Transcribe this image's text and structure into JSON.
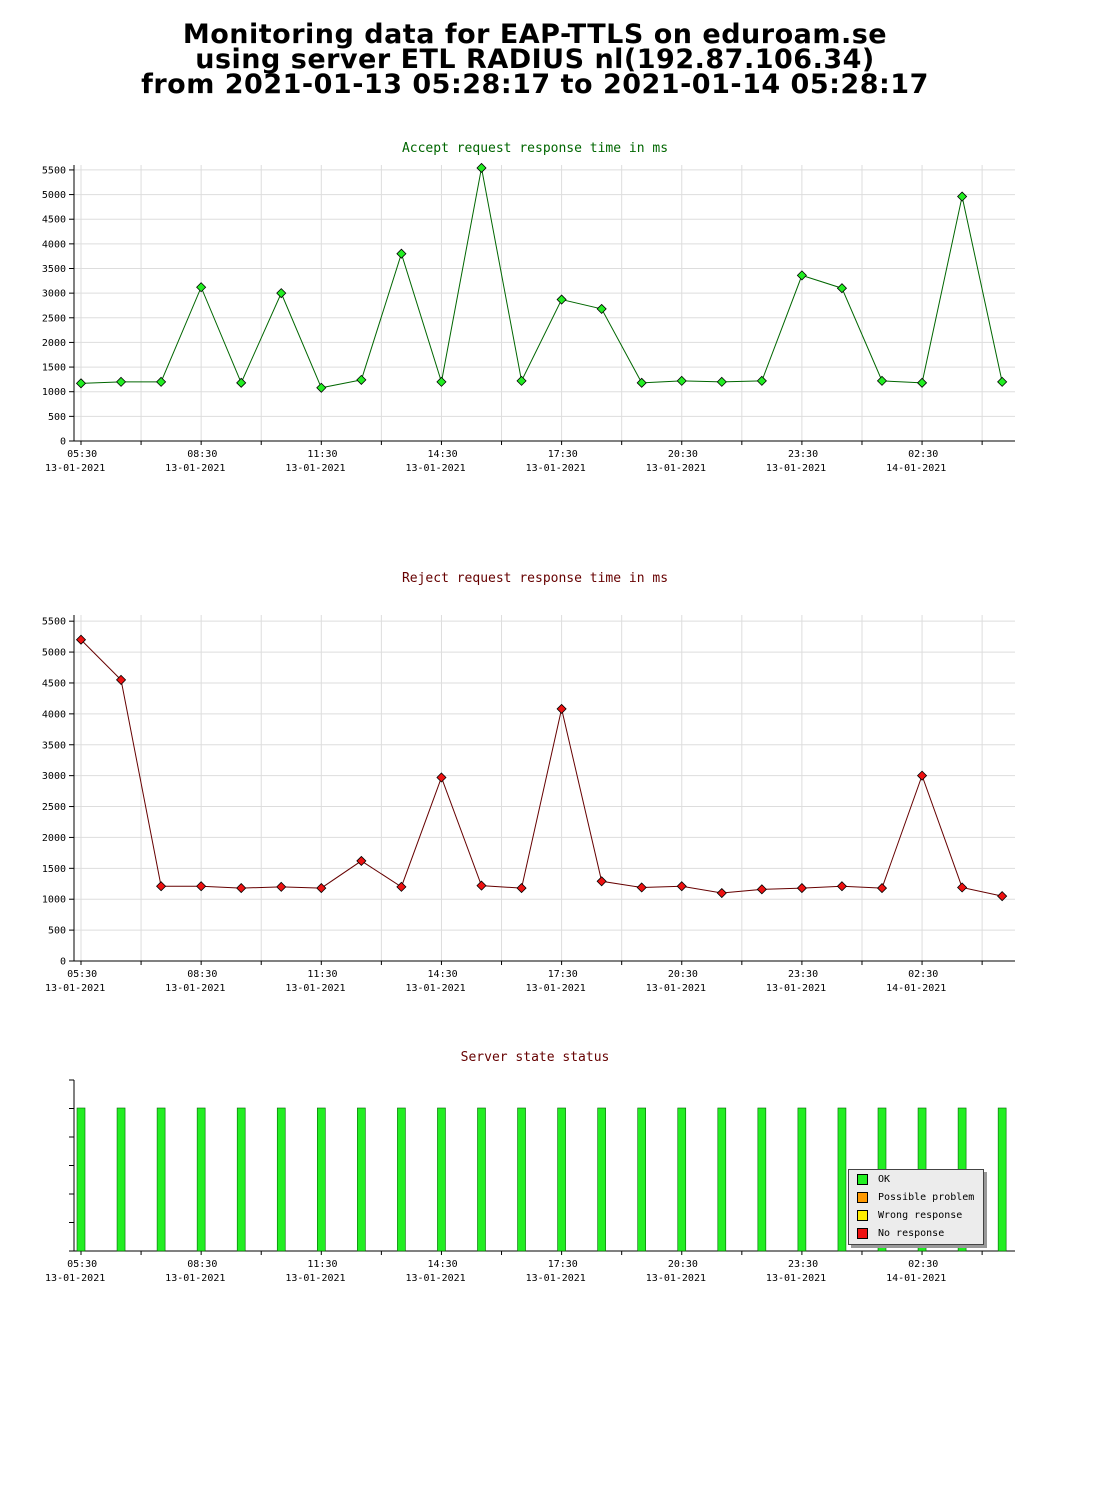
{
  "header": {
    "line1": "Monitoring data for EAP-TTLS on eduroam.se",
    "line2": "using server ETL RADIUS nl(192.87.106.34)",
    "line3": "from 2021-01-13 05:28:17 to 2021-01-14 05:28:17"
  },
  "x_axis": {
    "ticks": [
      {
        "time": "05:30",
        "date": "13-01-2021"
      },
      {
        "time": "08:30",
        "date": "13-01-2021"
      },
      {
        "time": "11:30",
        "date": "13-01-2021"
      },
      {
        "time": "14:30",
        "date": "13-01-2021"
      },
      {
        "time": "17:30",
        "date": "13-01-2021"
      },
      {
        "time": "20:30",
        "date": "13-01-2021"
      },
      {
        "time": "23:30",
        "date": "13-01-2021"
      },
      {
        "time": "02:30",
        "date": "14-01-2021"
      }
    ]
  },
  "chart_data": [
    {
      "type": "line",
      "title": "Accept request response time in ms",
      "title_color": "#006600",
      "line_color": "#006600",
      "marker_color": "#22ee22",
      "ylim": [
        0,
        5600
      ],
      "yticks": [
        0,
        500,
        1000,
        1500,
        2000,
        2500,
        3000,
        3500,
        4000,
        4500,
        5000,
        5500
      ],
      "grid": true,
      "x_hours": [
        0.0,
        1.0,
        2.0,
        3.0,
        4.0,
        5.0,
        6.0,
        7.0,
        8.0,
        9.0,
        10.0,
        11.0,
        12.0,
        13.0,
        14.0,
        15.0,
        16.0,
        17.0,
        18.0,
        19.0,
        20.0,
        21.0,
        22.0,
        23.0
      ],
      "values": [
        1170,
        1200,
        1200,
        3120,
        1180,
        3000,
        1080,
        1240,
        3800,
        1200,
        5540,
        1220,
        2870,
        2680,
        1180,
        1220,
        1200,
        1220,
        3360,
        3100,
        1220,
        1180,
        4960,
        1200
      ]
    },
    {
      "type": "line",
      "title": "Reject request response time in ms",
      "title_color": "#660000",
      "line_color": "#660000",
      "marker_color": "#ee1111",
      "ylim": [
        0,
        5600
      ],
      "yticks": [
        0,
        500,
        1000,
        1500,
        2000,
        2500,
        3000,
        3500,
        4000,
        4500,
        5000,
        5500
      ],
      "grid": true,
      "x_hours": [
        0.0,
        1.0,
        2.0,
        3.0,
        4.0,
        5.0,
        6.0,
        7.0,
        8.0,
        9.0,
        10.0,
        11.0,
        12.0,
        13.0,
        14.0,
        15.0,
        16.0,
        17.0,
        18.0,
        19.0,
        20.0,
        21.0,
        22.0,
        23.0
      ],
      "values": [
        5200,
        4550,
        1210,
        1210,
        1180,
        1200,
        1180,
        1620,
        1200,
        2970,
        1220,
        1180,
        4080,
        1290,
        1190,
        1210,
        1100,
        1160,
        1180,
        1210,
        1180,
        3000,
        1190,
        1050
      ]
    },
    {
      "type": "bar",
      "title": "Server state status",
      "title_color": "#660000",
      "x_hours": [
        0.0,
        1.0,
        2.0,
        3.0,
        4.0,
        5.0,
        6.0,
        7.0,
        8.0,
        9.0,
        10.0,
        11.0,
        12.0,
        13.0,
        14.0,
        15.0,
        16.0,
        17.0,
        18.0,
        19.0,
        20.0,
        21.0,
        22.0,
        23.0
      ],
      "states": [
        "OK",
        "OK",
        "OK",
        "OK",
        "OK",
        "OK",
        "OK",
        "OK",
        "OK",
        "OK",
        "OK",
        "OK",
        "OK",
        "OK",
        "OK",
        "OK",
        "OK",
        "OK",
        "OK",
        "OK",
        "OK",
        "OK",
        "OK",
        "OK"
      ],
      "legend": [
        {
          "label": "OK",
          "color": "#22ee22"
        },
        {
          "label": "Possible problem",
          "color": "#ff9900"
        },
        {
          "label": "Wrong response",
          "color": "#ffee00"
        },
        {
          "label": "No response",
          "color": "#ee1111"
        }
      ],
      "legend_position": "bottom-right"
    }
  ]
}
